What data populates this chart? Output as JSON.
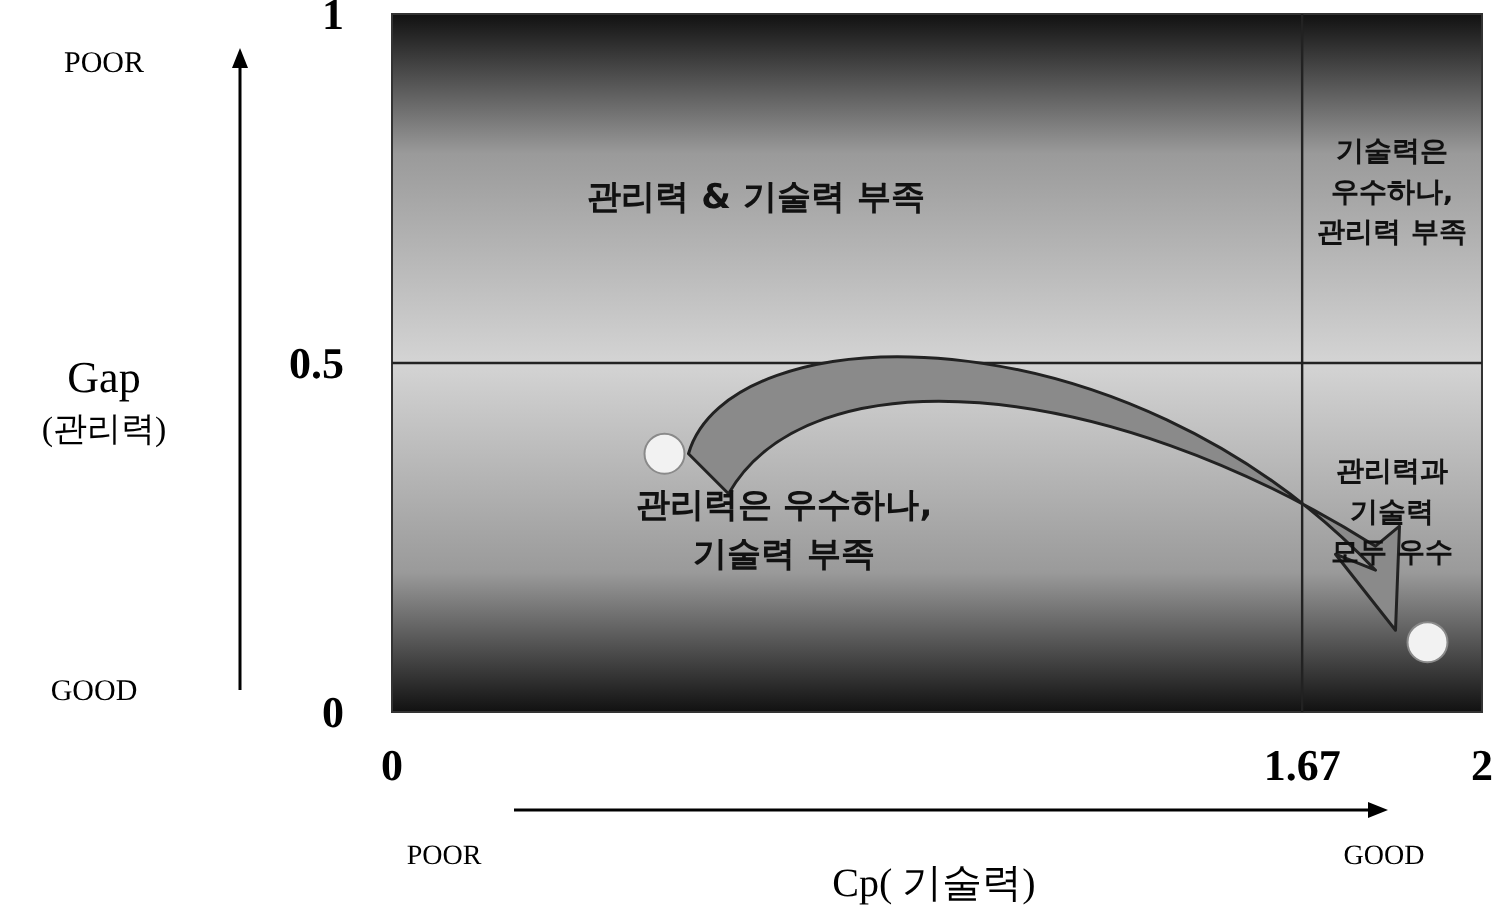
{
  "chart_data": {
    "type": "scatter",
    "xlabel": "Cp( 기술력)",
    "ylabel": "Gap\n(관리력)",
    "x": [
      0.5,
      1.9
    ],
    "series": [
      {
        "color": "#f2f2f2",
        "values": [
          0.37,
          0.1
        ]
      }
    ],
    "xlim": [
      0,
      2
    ],
    "ylim": [
      0,
      1
    ],
    "xticks": [
      0,
      1.67,
      2
    ],
    "yticks": [
      0,
      0.5,
      1
    ],
    "marker": "circle",
    "ref_lines": [
      {
        "axis": "x",
        "value": 1.67,
        "color": "#222222"
      },
      {
        "axis": "y",
        "value": 0.5,
        "color": "#222222"
      }
    ],
    "annotations": [
      "POOR",
      "GOOD",
      "POOR",
      "GOOD",
      "관리력 & 기술력 부족",
      "기술력은\n우수하나,\n관리력 부족",
      "관리력은 우수하나,\n기술력 부족",
      "관리력과\n기술력\n모두 우수"
    ]
  }
}
